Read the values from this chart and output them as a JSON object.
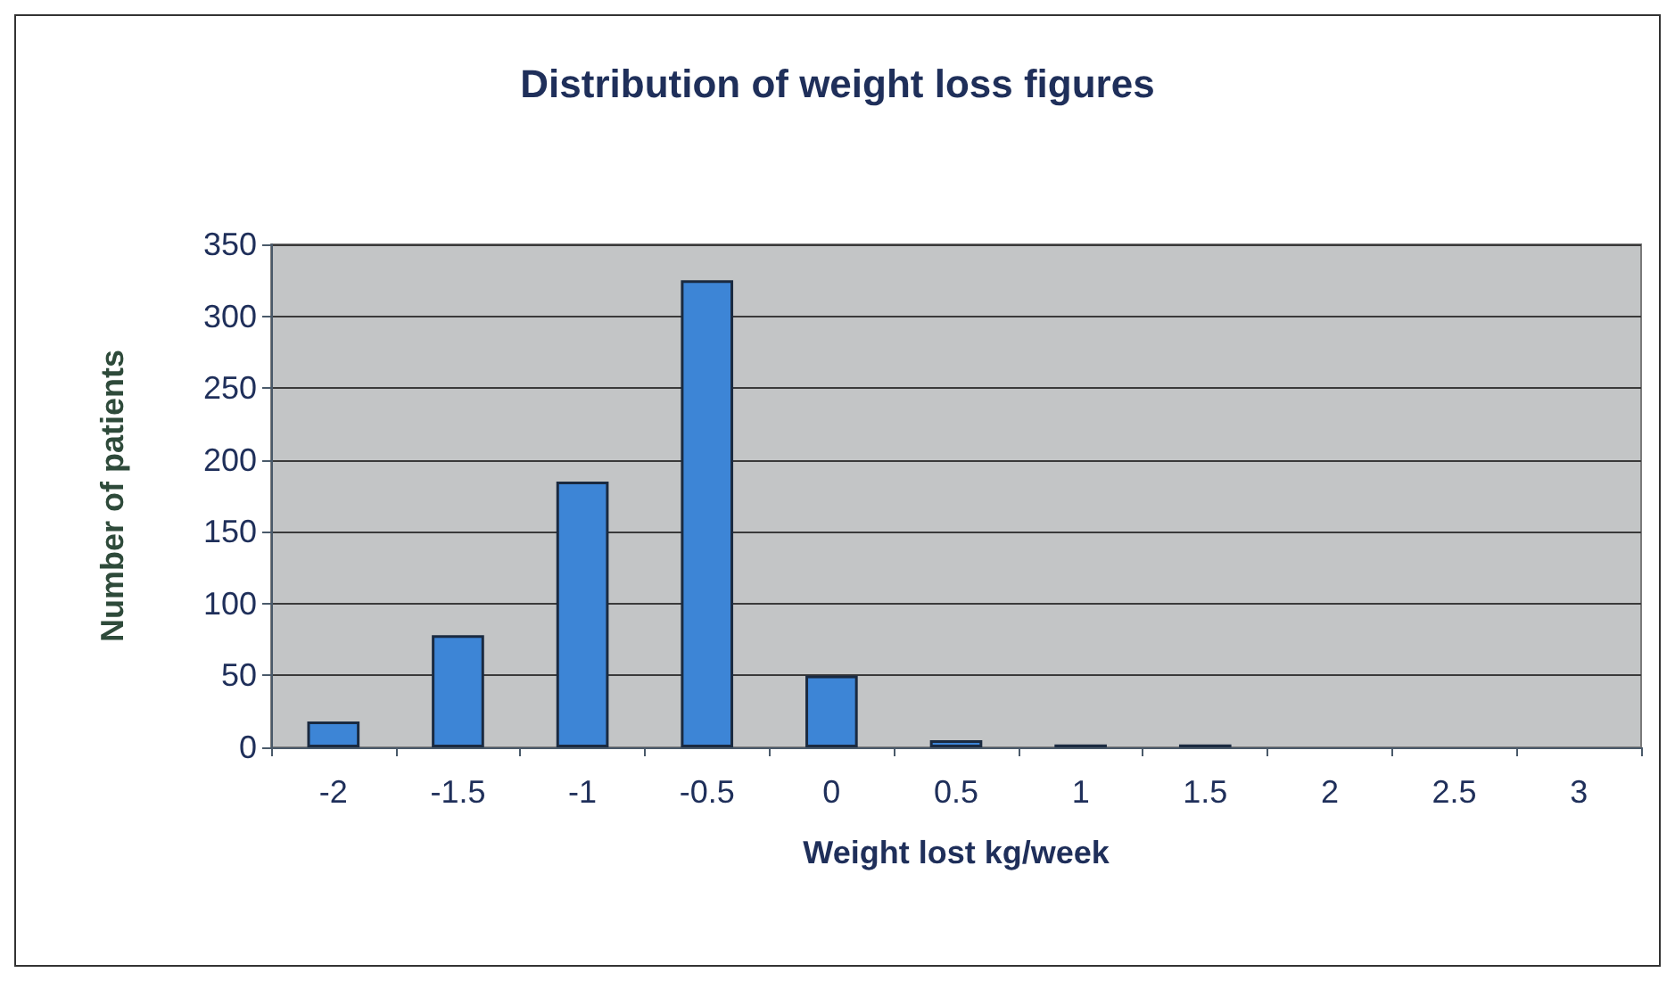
{
  "chart_data": {
    "type": "bar",
    "title": "Distribution of weight loss figures",
    "xlabel": "Weight lost kg/week",
    "ylabel": "Number of patients",
    "categories": [
      "-2",
      "-1.5",
      "-1",
      "-0.5",
      "0",
      "0.5",
      "1",
      "1.5",
      "2",
      "2.5",
      "3"
    ],
    "values": [
      18,
      78,
      185,
      325,
      50,
      5,
      2,
      2,
      0,
      0,
      0
    ],
    "color": "#3d85d6",
    "ylim": [
      0,
      350
    ],
    "yticks": [
      0,
      50,
      100,
      150,
      200,
      250,
      300,
      350
    ],
    "grid": "y"
  }
}
